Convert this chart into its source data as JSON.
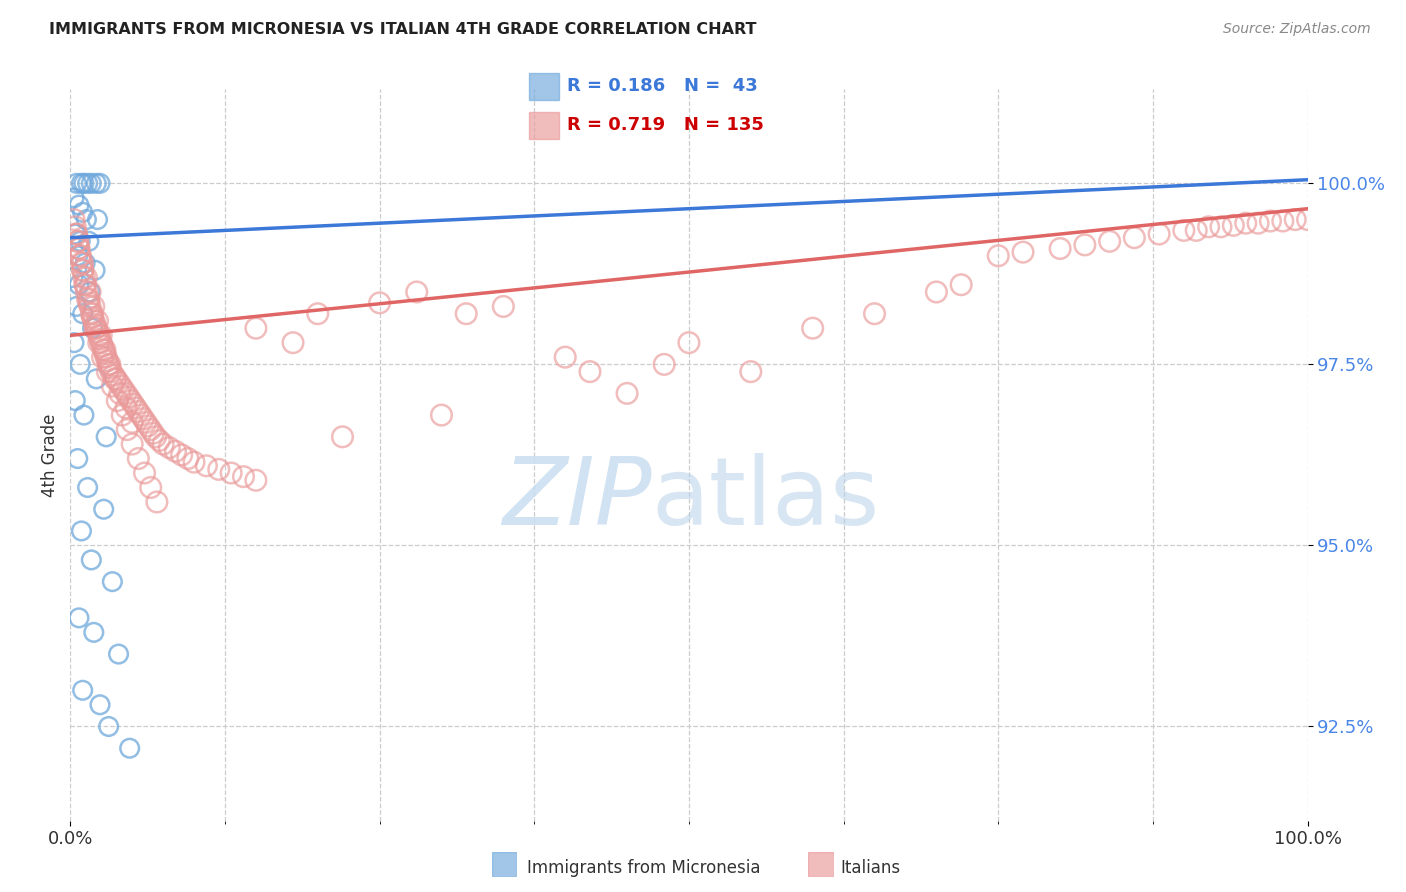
{
  "title": "IMMIGRANTS FROM MICRONESIA VS ITALIAN 4TH GRADE CORRELATION CHART",
  "source": "Source: ZipAtlas.com",
  "ylabel": "4th Grade",
  "y_tick_values": [
    92.5,
    95.0,
    97.5,
    100.0
  ],
  "x_range": [
    0.0,
    100.0
  ],
  "y_range": [
    91.2,
    101.3
  ],
  "legend_micronesia": "Immigrants from Micronesia",
  "legend_italians": "Italians",
  "color_micronesia": "#6fa8dc",
  "color_italians": "#ea9999",
  "color_line_micronesia": "#3c78d8",
  "color_line_italians": "#e06666",
  "R_micronesia": 0.186,
  "N_micronesia": 43,
  "R_italians": 0.719,
  "N_italians": 135,
  "mic_line_x": [
    0.0,
    100.0
  ],
  "mic_line_y": [
    99.25,
    100.05
  ],
  "ital_line_x": [
    0.0,
    100.0
  ],
  "ital_line_y": [
    97.9,
    99.65
  ],
  "micronesia_points": [
    [
      0.5,
      100.0
    ],
    [
      0.9,
      100.0
    ],
    [
      1.1,
      100.0
    ],
    [
      1.4,
      100.0
    ],
    [
      1.7,
      100.0
    ],
    [
      2.1,
      100.0
    ],
    [
      2.4,
      100.0
    ],
    [
      0.3,
      99.8
    ],
    [
      0.7,
      99.7
    ],
    [
      1.0,
      99.6
    ],
    [
      1.3,
      99.5
    ],
    [
      2.2,
      99.5
    ],
    [
      0.4,
      99.3
    ],
    [
      0.8,
      99.2
    ],
    [
      1.5,
      99.2
    ],
    [
      0.6,
      99.0
    ],
    [
      1.2,
      98.9
    ],
    [
      2.0,
      98.8
    ],
    [
      0.2,
      98.7
    ],
    [
      0.7,
      98.6
    ],
    [
      1.6,
      98.5
    ],
    [
      0.5,
      98.3
    ],
    [
      1.0,
      98.2
    ],
    [
      1.8,
      98.0
    ],
    [
      0.3,
      97.8
    ],
    [
      0.8,
      97.5
    ],
    [
      2.1,
      97.3
    ],
    [
      0.4,
      97.0
    ],
    [
      1.1,
      96.8
    ],
    [
      2.9,
      96.5
    ],
    [
      0.6,
      96.2
    ],
    [
      1.4,
      95.8
    ],
    [
      2.7,
      95.5
    ],
    [
      0.9,
      95.2
    ],
    [
      1.7,
      94.8
    ],
    [
      3.4,
      94.5
    ],
    [
      0.7,
      94.0
    ],
    [
      1.9,
      93.8
    ],
    [
      3.9,
      93.5
    ],
    [
      1.0,
      93.0
    ],
    [
      2.4,
      92.8
    ],
    [
      3.1,
      92.5
    ],
    [
      4.8,
      92.2
    ]
  ],
  "italians_points": [
    [
      0.3,
      99.5
    ],
    [
      0.5,
      99.3
    ],
    [
      0.6,
      99.2
    ],
    [
      0.7,
      99.1
    ],
    [
      0.8,
      99.0
    ],
    [
      0.9,
      98.9
    ],
    [
      1.0,
      98.8
    ],
    [
      1.1,
      98.7
    ],
    [
      1.2,
      98.6
    ],
    [
      1.3,
      98.5
    ],
    [
      1.4,
      98.4
    ],
    [
      1.5,
      98.35
    ],
    [
      1.6,
      98.3
    ],
    [
      1.7,
      98.2
    ],
    [
      1.8,
      98.15
    ],
    [
      1.9,
      98.1
    ],
    [
      2.0,
      98.05
    ],
    [
      2.1,
      98.0
    ],
    [
      2.2,
      97.95
    ],
    [
      2.3,
      97.9
    ],
    [
      2.4,
      97.85
    ],
    [
      2.5,
      97.8
    ],
    [
      2.6,
      97.75
    ],
    [
      2.7,
      97.7
    ],
    [
      2.8,
      97.65
    ],
    [
      2.9,
      97.6
    ],
    [
      3.0,
      97.55
    ],
    [
      3.1,
      97.5
    ],
    [
      3.2,
      97.45
    ],
    [
      3.3,
      97.4
    ],
    [
      3.5,
      97.35
    ],
    [
      3.7,
      97.3
    ],
    [
      3.9,
      97.25
    ],
    [
      4.1,
      97.2
    ],
    [
      4.3,
      97.15
    ],
    [
      4.5,
      97.1
    ],
    [
      4.7,
      97.05
    ],
    [
      4.9,
      97.0
    ],
    [
      5.1,
      96.95
    ],
    [
      5.3,
      96.9
    ],
    [
      5.5,
      96.85
    ],
    [
      5.7,
      96.8
    ],
    [
      5.9,
      96.75
    ],
    [
      6.1,
      96.7
    ],
    [
      6.3,
      96.65
    ],
    [
      6.5,
      96.6
    ],
    [
      6.7,
      96.55
    ],
    [
      6.9,
      96.5
    ],
    [
      7.2,
      96.45
    ],
    [
      7.5,
      96.4
    ],
    [
      8.0,
      96.35
    ],
    [
      8.5,
      96.3
    ],
    [
      9.0,
      96.25
    ],
    [
      9.5,
      96.2
    ],
    [
      10.0,
      96.15
    ],
    [
      11.0,
      96.1
    ],
    [
      12.0,
      96.05
    ],
    [
      13.0,
      96.0
    ],
    [
      14.0,
      95.95
    ],
    [
      15.0,
      95.9
    ],
    [
      0.4,
      99.4
    ],
    [
      0.6,
      99.2
    ],
    [
      0.8,
      99.0
    ],
    [
      1.0,
      98.8
    ],
    [
      1.2,
      98.6
    ],
    [
      1.5,
      98.4
    ],
    [
      1.8,
      98.2
    ],
    [
      2.0,
      98.0
    ],
    [
      2.3,
      97.8
    ],
    [
      2.6,
      97.6
    ],
    [
      3.0,
      97.4
    ],
    [
      3.4,
      97.2
    ],
    [
      3.8,
      97.0
    ],
    [
      4.2,
      96.8
    ],
    [
      4.6,
      96.6
    ],
    [
      5.0,
      96.4
    ],
    [
      5.5,
      96.2
    ],
    [
      6.0,
      96.0
    ],
    [
      6.5,
      95.8
    ],
    [
      7.0,
      95.6
    ],
    [
      0.5,
      99.3
    ],
    [
      0.7,
      99.1
    ],
    [
      1.0,
      98.9
    ],
    [
      1.3,
      98.7
    ],
    [
      1.6,
      98.5
    ],
    [
      1.9,
      98.3
    ],
    [
      2.2,
      98.1
    ],
    [
      2.5,
      97.9
    ],
    [
      2.8,
      97.7
    ],
    [
      3.2,
      97.5
    ],
    [
      3.6,
      97.3
    ],
    [
      4.0,
      97.1
    ],
    [
      4.5,
      96.9
    ],
    [
      5.0,
      96.7
    ],
    [
      20.0,
      98.2
    ],
    [
      25.0,
      98.35
    ],
    [
      28.0,
      98.5
    ],
    [
      32.0,
      98.2
    ],
    [
      35.0,
      98.3
    ],
    [
      40.0,
      97.6
    ],
    [
      42.0,
      97.4
    ],
    [
      45.0,
      97.1
    ],
    [
      48.0,
      97.5
    ],
    [
      50.0,
      97.8
    ],
    [
      60.0,
      98.0
    ],
    [
      65.0,
      98.2
    ],
    [
      70.0,
      98.5
    ],
    [
      72.0,
      98.6
    ],
    [
      75.0,
      99.0
    ],
    [
      77.0,
      99.05
    ],
    [
      80.0,
      99.1
    ],
    [
      82.0,
      99.15
    ],
    [
      84.0,
      99.2
    ],
    [
      86.0,
      99.25
    ],
    [
      88.0,
      99.3
    ],
    [
      90.0,
      99.35
    ],
    [
      91.0,
      99.35
    ],
    [
      92.0,
      99.4
    ],
    [
      93.0,
      99.4
    ],
    [
      94.0,
      99.42
    ],
    [
      95.0,
      99.45
    ],
    [
      96.0,
      99.45
    ],
    [
      97.0,
      99.48
    ],
    [
      98.0,
      99.48
    ],
    [
      99.0,
      99.5
    ],
    [
      100.0,
      99.5
    ],
    [
      15.0,
      98.0
    ],
    [
      18.0,
      97.8
    ],
    [
      22.0,
      96.5
    ],
    [
      30.0,
      96.8
    ],
    [
      55.0,
      97.4
    ]
  ]
}
